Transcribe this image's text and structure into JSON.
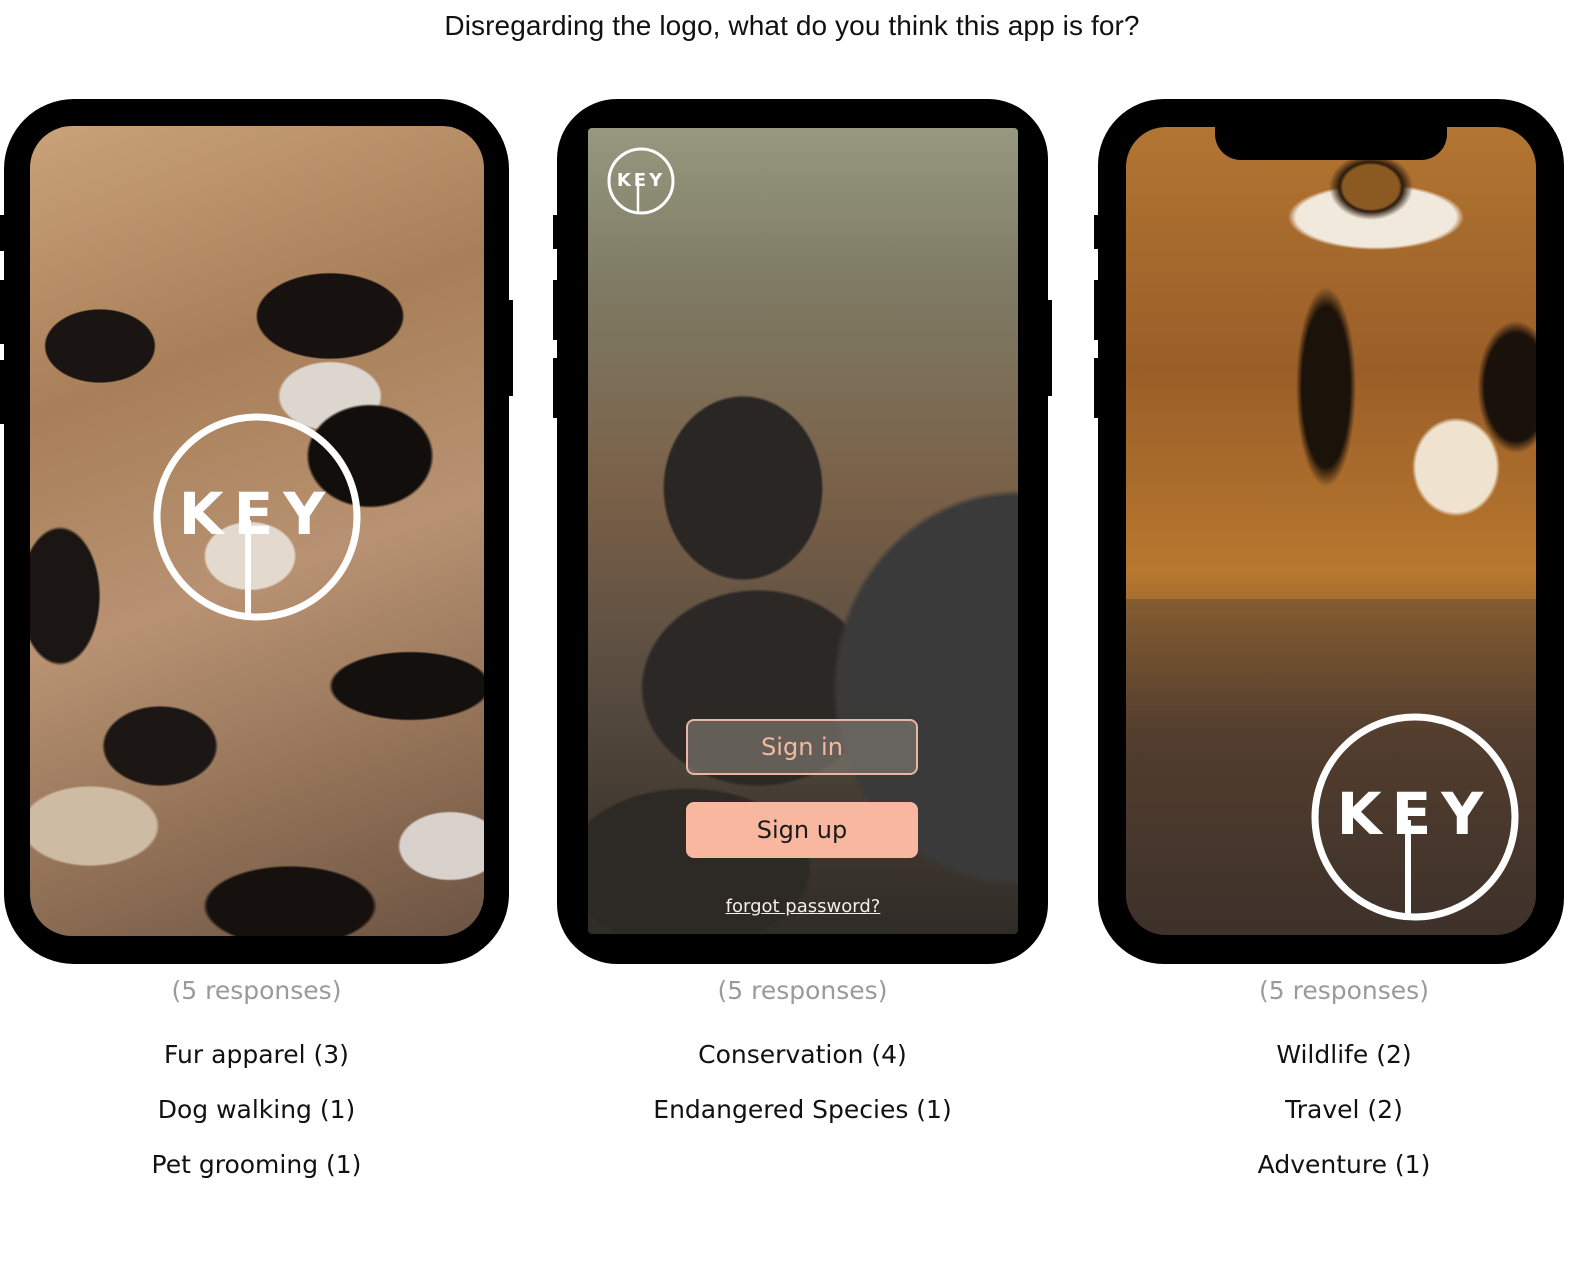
{
  "question": "Disregarding the logo, what do you think this app is for?",
  "logo_text": "KEY",
  "phones": [
    {
      "responses": "(5 responses)",
      "answers": [
        "Fur apparel (3)",
        "Dog walking (1)",
        "Pet grooming (1)"
      ]
    },
    {
      "sign_in": "Sign in",
      "sign_up": "Sign up",
      "forgot_password": "forgot password?",
      "responses": "(5 responses)",
      "answers": [
        "Conservation (4)",
        "Endangered Species (1)"
      ]
    },
    {
      "responses": "(5 responses)",
      "answers": [
        "Wildlife (2)",
        "Travel (2)",
        "Adventure (1)"
      ]
    }
  ]
}
